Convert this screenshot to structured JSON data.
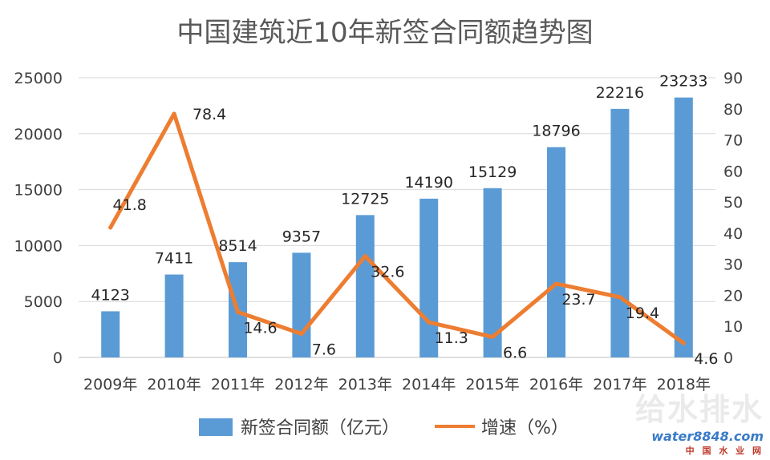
{
  "chart_data": {
    "type": "bar+line",
    "title": "中国建筑近10年新签合同额趋势图",
    "categories": [
      "2009年",
      "2010年",
      "2011年",
      "2012年",
      "2013年",
      "2014年",
      "2015年",
      "2016年",
      "2017年",
      "2018年"
    ],
    "series": [
      {
        "name": "新签合同额（亿元）",
        "kind": "bar",
        "axis": "left",
        "color": "#5B9BD5",
        "values": [
          4123,
          7411,
          8514,
          9357,
          12725,
          14190,
          15129,
          18796,
          22216,
          23233
        ]
      },
      {
        "name": "增速（%）",
        "kind": "line",
        "axis": "right",
        "color": "#ED7D31",
        "values": [
          41.8,
          78.4,
          14.6,
          7.6,
          32.6,
          11.3,
          6.6,
          23.7,
          19.4,
          4.6
        ]
      }
    ],
    "y_left": {
      "min": 0,
      "max": 25000,
      "ticks": [
        0,
        5000,
        10000,
        15000,
        20000,
        25000
      ]
    },
    "y_right": {
      "min": 0,
      "max": 90,
      "ticks": [
        0,
        10,
        20,
        30,
        40,
        50,
        60,
        70,
        80,
        90
      ]
    },
    "grid": true,
    "legend": "bottom"
  },
  "watermark": {
    "logo": "给水排水",
    "site_text": "water8848.com",
    "site_subtitle": "中 国 水 业 网"
  }
}
